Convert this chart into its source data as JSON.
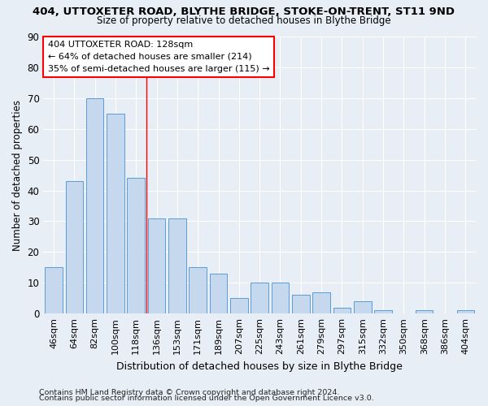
{
  "title1": "404, UTTOXETER ROAD, BLYTHE BRIDGE, STOKE-ON-TRENT, ST11 9ND",
  "title2": "Size of property relative to detached houses in Blythe Bridge",
  "xlabel": "Distribution of detached houses by size in Blythe Bridge",
  "ylabel": "Number of detached properties",
  "categories": [
    "46sqm",
    "64sqm",
    "82sqm",
    "100sqm",
    "118sqm",
    "136sqm",
    "153sqm",
    "171sqm",
    "189sqm",
    "207sqm",
    "225sqm",
    "243sqm",
    "261sqm",
    "279sqm",
    "297sqm",
    "315sqm",
    "332sqm",
    "350sqm",
    "368sqm",
    "386sqm",
    "404sqm"
  ],
  "values": [
    15,
    43,
    70,
    65,
    44,
    31,
    31,
    15,
    13,
    5,
    10,
    10,
    6,
    7,
    2,
    4,
    1,
    0,
    1,
    0,
    1
  ],
  "bar_color": "#c5d8ed",
  "bar_edge_color": "#5b9bd5",
  "bar_width": 0.85,
  "vline_x": 5.0,
  "vline_color": "red",
  "annotation_text": "404 UTTOXETER ROAD: 128sqm\n← 64% of detached houses are smaller (214)\n35% of semi-detached houses are larger (115) →",
  "annotation_box_color": "white",
  "annotation_box_edge_color": "red",
  "ylim": [
    0,
    90
  ],
  "yticks": [
    0,
    10,
    20,
    30,
    40,
    50,
    60,
    70,
    80,
    90
  ],
  "footer1": "Contains HM Land Registry data © Crown copyright and database right 2024.",
  "footer2": "Contains public sector information licensed under the Open Government Licence v3.0.",
  "bg_color": "#e8eef5",
  "plot_bg_color": "#e8eef5",
  "figsize": [
    6.0,
    5.0
  ],
  "dpi": 100
}
